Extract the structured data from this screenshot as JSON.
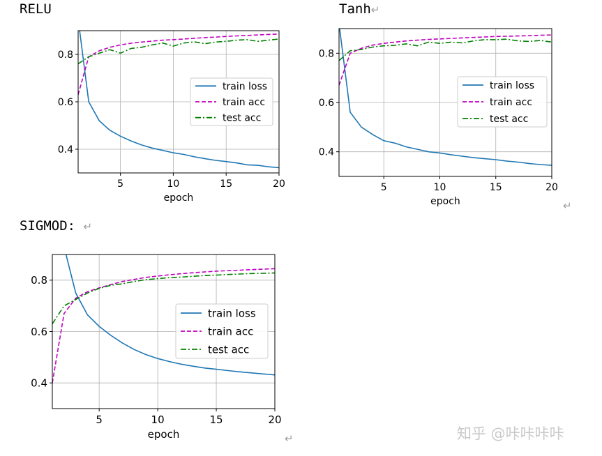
{
  "headings": {
    "relu": "RELU",
    "tanh": "Tanh",
    "sigmod": "SIGMOD:"
  },
  "return_mark": "↵",
  "watermark": "知乎 @咔咔咔咔",
  "colors": {
    "train_loss": "#1f77b4",
    "train_acc": "#bf00bf",
    "test_acc": "#008000",
    "grid": "#b0b0b0"
  },
  "chart_data": [
    {
      "type": "line",
      "heading": "RELU",
      "xlabel": "epoch",
      "xlim": [
        1,
        20
      ],
      "ylim": [
        0.3,
        0.9
      ],
      "xticks": [
        5,
        10,
        15,
        20
      ],
      "yticks": [
        0.4,
        0.6,
        0.8
      ],
      "grid": true,
      "legend": "center-right",
      "x": [
        1,
        2,
        3,
        4,
        5,
        6,
        7,
        8,
        9,
        10,
        11,
        12,
        13,
        14,
        15,
        16,
        17,
        18,
        19,
        20
      ],
      "series": [
        {
          "name": "train loss",
          "style": "solid",
          "values": [
            0.95,
            0.6,
            0.52,
            0.48,
            0.455,
            0.435,
            0.418,
            0.405,
            0.395,
            0.385,
            0.378,
            0.368,
            0.36,
            0.353,
            0.348,
            0.342,
            0.334,
            0.332,
            0.326,
            0.322
          ]
        },
        {
          "name": "train acc",
          "style": "dashed",
          "values": [
            0.63,
            0.79,
            0.815,
            0.83,
            0.84,
            0.847,
            0.852,
            0.856,
            0.86,
            0.862,
            0.865,
            0.868,
            0.871,
            0.873,
            0.876,
            0.878,
            0.88,
            0.882,
            0.884,
            0.886
          ]
        },
        {
          "name": "test acc",
          "style": "dashdot",
          "values": [
            0.76,
            0.79,
            0.805,
            0.82,
            0.805,
            0.825,
            0.83,
            0.84,
            0.848,
            0.835,
            0.848,
            0.853,
            0.845,
            0.852,
            0.855,
            0.86,
            0.862,
            0.855,
            0.86,
            0.865
          ]
        }
      ]
    },
    {
      "type": "line",
      "heading": "Tanh",
      "xlabel": "epoch",
      "xlim": [
        1,
        20
      ],
      "ylim": [
        0.3,
        0.9
      ],
      "xticks": [
        5,
        10,
        15,
        20
      ],
      "yticks": [
        0.4,
        0.6,
        0.8
      ],
      "grid": true,
      "legend": "center-right",
      "x": [
        1,
        2,
        3,
        4,
        5,
        6,
        7,
        8,
        9,
        10,
        11,
        12,
        13,
        14,
        15,
        16,
        17,
        18,
        19,
        20
      ],
      "series": [
        {
          "name": "train loss",
          "style": "solid",
          "values": [
            0.92,
            0.56,
            0.5,
            0.47,
            0.445,
            0.435,
            0.42,
            0.41,
            0.4,
            0.395,
            0.388,
            0.382,
            0.376,
            0.372,
            0.368,
            0.362,
            0.358,
            0.352,
            0.348,
            0.345
          ]
        },
        {
          "name": "train acc",
          "style": "dashed",
          "values": [
            0.67,
            0.8,
            0.82,
            0.833,
            0.84,
            0.845,
            0.85,
            0.853,
            0.856,
            0.858,
            0.86,
            0.862,
            0.864,
            0.866,
            0.868,
            0.869,
            0.87,
            0.871,
            0.873,
            0.874
          ]
        },
        {
          "name": "test acc",
          "style": "dashdot",
          "values": [
            0.77,
            0.81,
            0.815,
            0.825,
            0.83,
            0.832,
            0.838,
            0.83,
            0.845,
            0.84,
            0.845,
            0.842,
            0.85,
            0.855,
            0.855,
            0.857,
            0.85,
            0.848,
            0.852,
            0.845
          ]
        }
      ]
    },
    {
      "type": "line",
      "heading": "SIGMOD:",
      "xlabel": "epoch",
      "xlim": [
        1,
        20
      ],
      "ylim": [
        0.3,
        0.9
      ],
      "xticks": [
        5,
        10,
        15,
        20
      ],
      "yticks": [
        0.4,
        0.6,
        0.8
      ],
      "grid": true,
      "legend": "center-right",
      "x": [
        1,
        2,
        3,
        4,
        5,
        6,
        7,
        8,
        9,
        10,
        11,
        12,
        13,
        14,
        15,
        16,
        17,
        18,
        19,
        20
      ],
      "series": [
        {
          "name": "train loss",
          "style": "solid",
          "values": [
            1.0,
            0.93,
            0.75,
            0.665,
            0.62,
            0.585,
            0.555,
            0.53,
            0.51,
            0.495,
            0.483,
            0.473,
            0.465,
            0.458,
            0.453,
            0.448,
            0.443,
            0.439,
            0.435,
            0.431
          ]
        },
        {
          "name": "train acc",
          "style": "dashed",
          "values": [
            0.4,
            0.67,
            0.73,
            0.755,
            0.77,
            0.783,
            0.795,
            0.803,
            0.811,
            0.816,
            0.821,
            0.825,
            0.829,
            0.832,
            0.835,
            0.837,
            0.839,
            0.841,
            0.843,
            0.845
          ]
        },
        {
          "name": "test acc",
          "style": "dashdot",
          "values": [
            0.63,
            0.7,
            0.725,
            0.75,
            0.768,
            0.78,
            0.786,
            0.795,
            0.802,
            0.806,
            0.81,
            0.812,
            0.815,
            0.818,
            0.82,
            0.822,
            0.824,
            0.826,
            0.827,
            0.828
          ]
        }
      ]
    }
  ]
}
